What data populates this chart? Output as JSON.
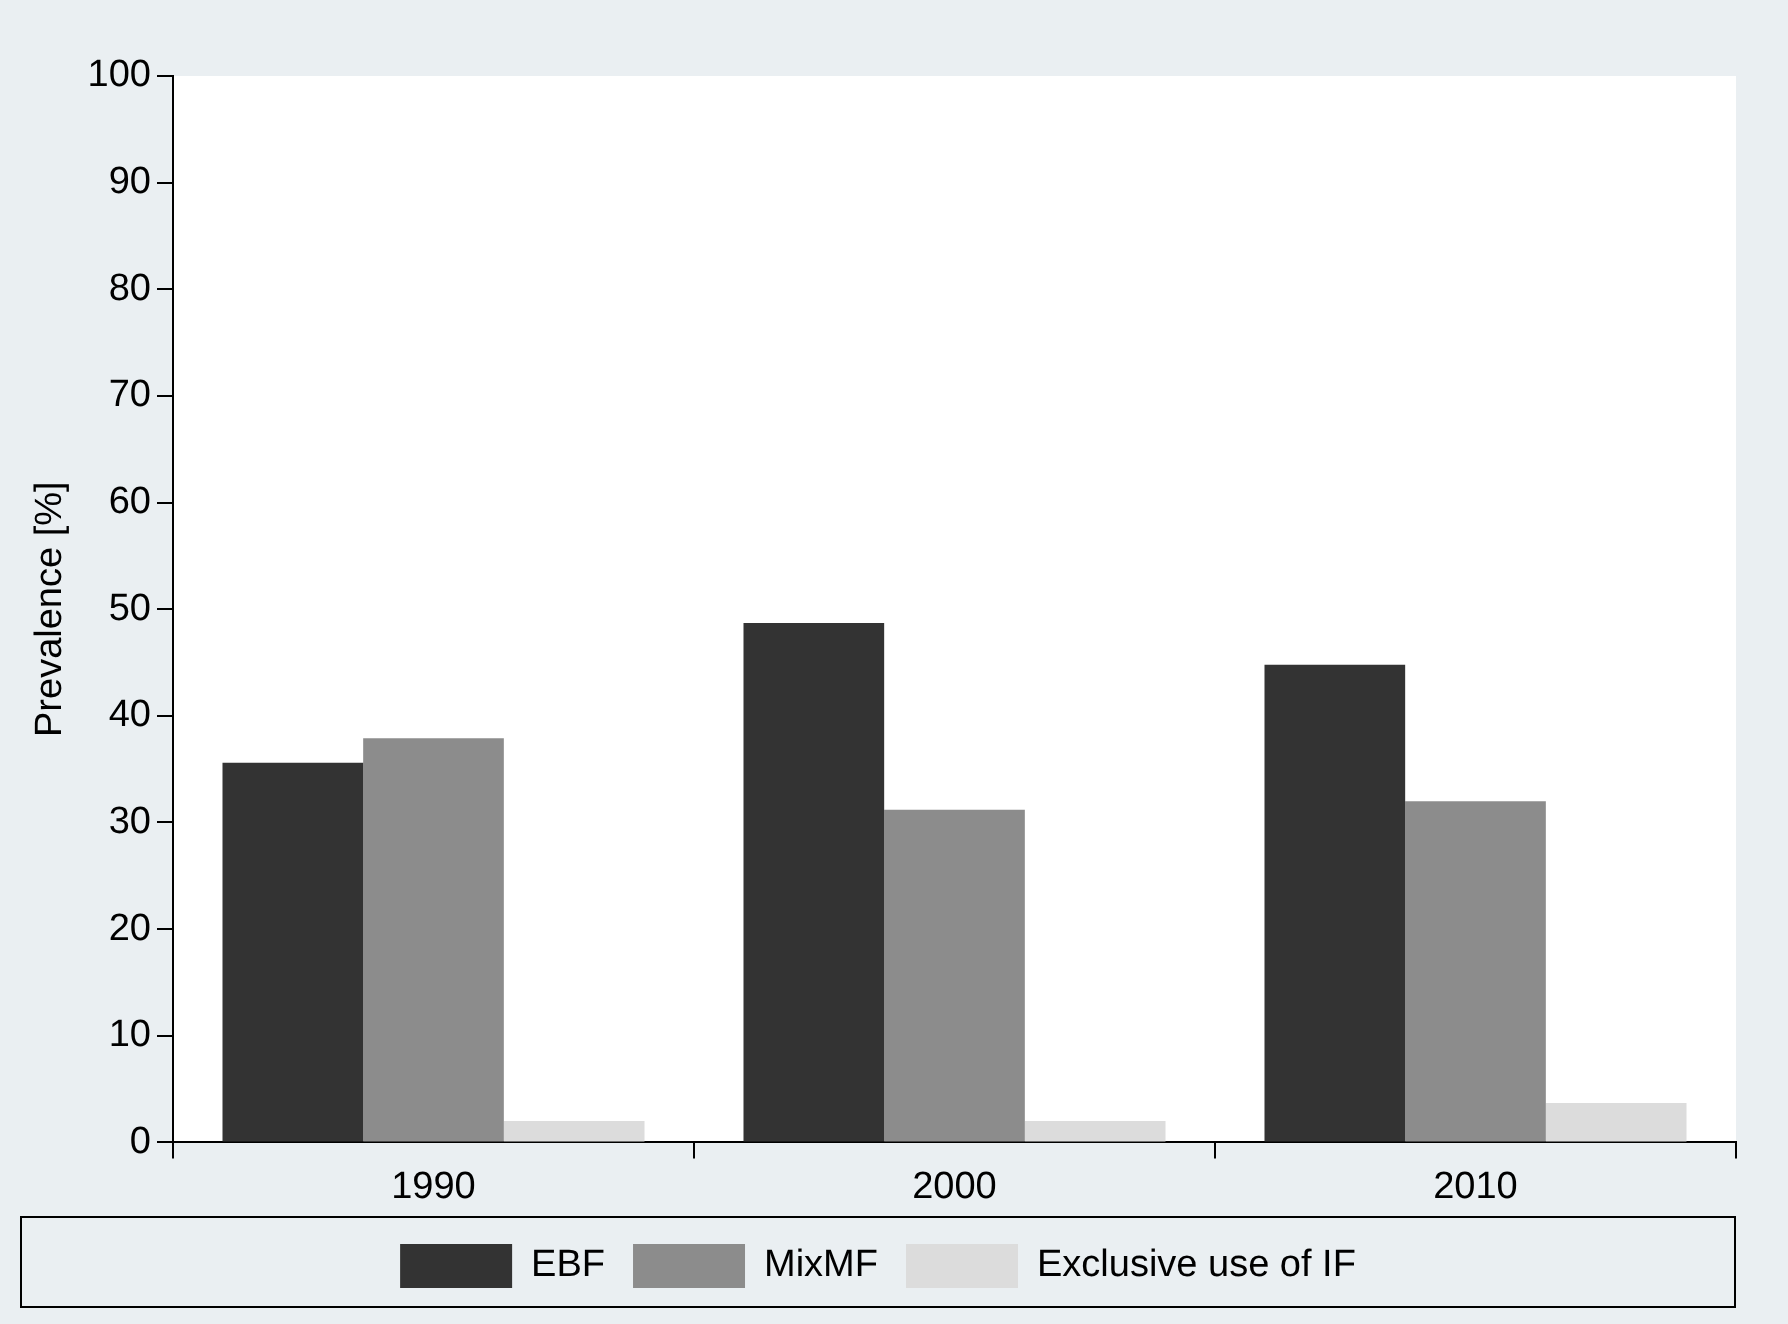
{
  "chart_data": {
    "type": "bar",
    "ylabel": "Prevalence [%]",
    "categories": [
      "1990",
      "2000",
      "2010"
    ],
    "series": [
      {
        "name": "EBF",
        "color": "#333333",
        "values": [
          35.6,
          48.7,
          44.8
        ]
      },
      {
        "name": "MixMF",
        "color": "#8c8c8c",
        "values": [
          37.9,
          31.2,
          32.0
        ]
      },
      {
        "name": "Exclusive use of IF",
        "color": "#dcdcdc",
        "values": [
          2.0,
          2.0,
          3.7
        ]
      }
    ],
    "ylim": [
      0,
      100
    ],
    "yticks": [
      0,
      10,
      20,
      30,
      40,
      50,
      60,
      70,
      80,
      90,
      100
    ],
    "grid": false,
    "legend": "bottom"
  }
}
